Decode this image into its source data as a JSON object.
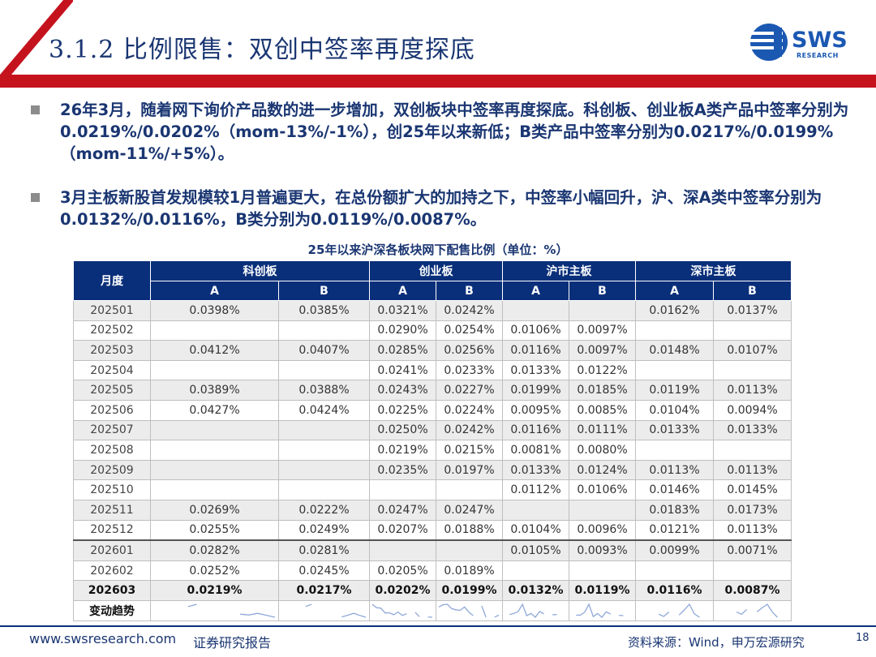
{
  "title": "3.1.2 比例限售：双创中签率再度探底",
  "logo": {
    "name": "SWS",
    "sub": "RESEARCH"
  },
  "bullets": [
    "26年3月，随着网下询价产品数的进一步增加，双创板块中签率再度探底。科创板、创业板A类产品中签率分别为0.0219%/0.0202%（mom-13%/-1%），创25年以来新低；B类产品中签率分别为0.0217%/0.0199%（mom-11%/+5%）。",
    "3月主板新股首发规模较1月普遍更大，在总份额扩大的加持之下，中签率小幅回升，沪、深A类中签率分别为0.0132%/0.0116%，B类分别为0.0119%/0.0087%。"
  ],
  "table_title": "25年以来沪深各板块网下配售比例（单位：%）",
  "chart_data": {
    "type": "table",
    "header_month": "月度",
    "groups": [
      "科创板",
      "创业板",
      "沪市主板",
      "深市主板"
    ],
    "sub_headers": [
      "A",
      "B"
    ],
    "rows": [
      {
        "month": "202501",
        "cells": [
          "0.0398%",
          "0.0385%",
          "0.0321%",
          "0.0242%",
          "",
          "",
          "0.0162%",
          "0.0137%"
        ]
      },
      {
        "month": "202502",
        "cells": [
          "",
          "",
          "0.0290%",
          "0.0254%",
          "0.0106%",
          "0.0097%",
          "",
          ""
        ]
      },
      {
        "month": "202503",
        "cells": [
          "0.0412%",
          "0.0407%",
          "0.0285%",
          "0.0256%",
          "0.0116%",
          "0.0097%",
          "0.0148%",
          "0.0107%"
        ]
      },
      {
        "month": "202504",
        "cells": [
          "",
          "",
          "0.0241%",
          "0.0233%",
          "0.0133%",
          "0.0122%",
          "",
          ""
        ]
      },
      {
        "month": "202505",
        "cells": [
          "0.0389%",
          "0.0388%",
          "0.0243%",
          "0.0227%",
          "0.0199%",
          "0.0185%",
          "0.0119%",
          "0.0113%"
        ]
      },
      {
        "month": "202506",
        "cells": [
          "0.0427%",
          "0.0424%",
          "0.0225%",
          "0.0224%",
          "0.0095%",
          "0.0085%",
          "0.0104%",
          "0.0094%"
        ]
      },
      {
        "month": "202507",
        "cells": [
          "",
          "",
          "0.0250%",
          "0.0242%",
          "0.0116%",
          "0.0111%",
          "0.0133%",
          "0.0133%"
        ]
      },
      {
        "month": "202508",
        "cells": [
          "",
          "",
          "0.0219%",
          "0.0215%",
          "0.0081%",
          "0.0080%",
          "",
          ""
        ]
      },
      {
        "month": "202509",
        "cells": [
          "",
          "",
          "0.0235%",
          "0.0197%",
          "0.0133%",
          "0.0124%",
          "0.0113%",
          "0.0113%"
        ]
      },
      {
        "month": "202510",
        "cells": [
          "",
          "",
          "",
          "",
          "0.0112%",
          "0.0106%",
          "0.0146%",
          "0.0145%"
        ]
      },
      {
        "month": "202511",
        "cells": [
          "0.0269%",
          "0.0222%",
          "0.0247%",
          "0.0247%",
          "",
          "",
          "0.0183%",
          "0.0173%"
        ]
      },
      {
        "month": "202512",
        "cells": [
          "0.0255%",
          "0.0249%",
          "0.0207%",
          "0.0188%",
          "0.0104%",
          "0.0096%",
          "0.0121%",
          "0.0113%"
        ]
      },
      {
        "month": "202601",
        "cells": [
          "0.0282%",
          "0.0281%",
          "",
          "",
          "0.0105%",
          "0.0093%",
          "0.0099%",
          "0.0071%"
        ]
      },
      {
        "month": "202602",
        "cells": [
          "0.0252%",
          "0.0245%",
          "0.0205%",
          "0.0189%",
          "",
          "",
          "",
          ""
        ]
      },
      {
        "month": "202603",
        "cells": [
          "0.0219%",
          "0.0217%",
          "0.0202%",
          "0.0199%",
          "0.0132%",
          "0.0119%",
          "0.0116%",
          "0.0087%"
        ]
      }
    ],
    "trend_label": "变动趋势",
    "sparkline_color": "#8fa8d8"
  },
  "footer": {
    "url": "www.swsresearch.com",
    "label": "证券研究报告",
    "source": "资料来源：Wind，申万宏源研究",
    "page": "18"
  }
}
